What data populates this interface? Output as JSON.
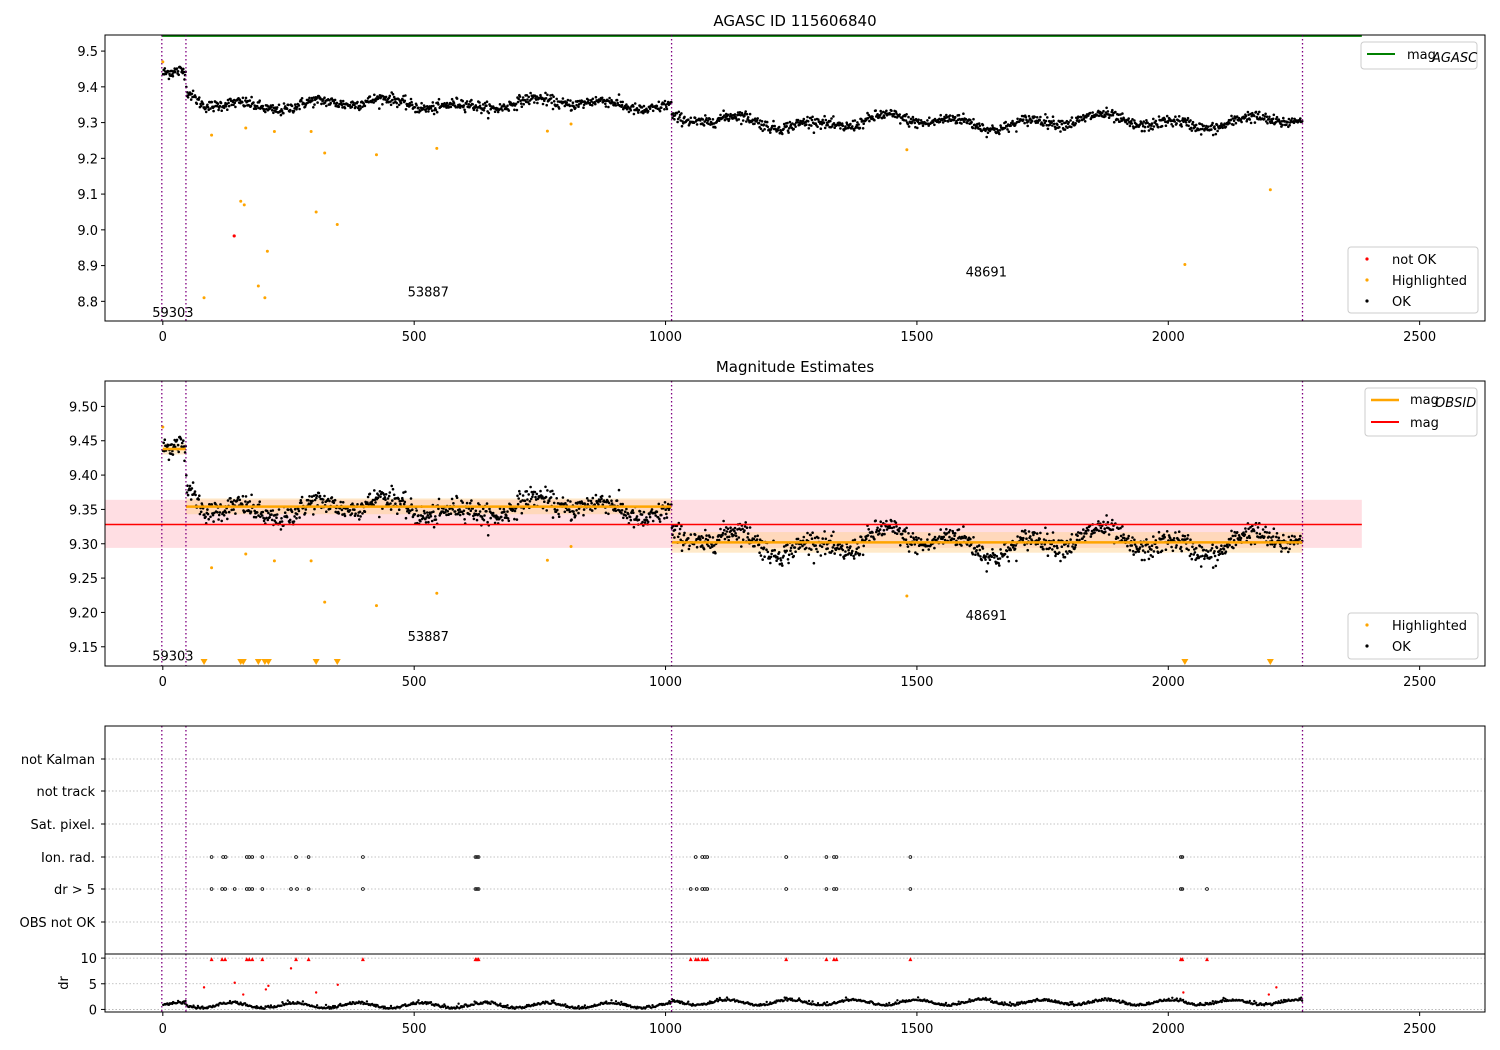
{
  "colors": {
    "ok": "#000000",
    "highlighted": "#ffa500",
    "not_ok": "#ff0000",
    "mag_agasc": "#008000",
    "mag_obsid": "#ffa500",
    "mag": "#ff0000",
    "obs_line": "#800080",
    "obs_line_alt": "#0000ff"
  },
  "chart_data": [
    {
      "type": "scatter",
      "title": "AGASC ID 115606840",
      "xlim": [
        -115,
        2630
      ],
      "ylim": [
        8.745,
        9.545
      ],
      "x_ticks": [
        0,
        500,
        1000,
        1500,
        2000,
        2500
      ],
      "x_tick_labels": [
        "0",
        "500",
        "1000",
        "1500",
        "2000",
        "2500"
      ],
      "y_ticks": [
        8.8,
        8.9,
        9.0,
        9.1,
        9.2,
        9.3,
        9.4,
        9.5
      ],
      "y_tick_labels": [
        "8.8",
        "8.9",
        "9.0",
        "9.1",
        "9.2",
        "9.3",
        "9.4",
        "9.5"
      ],
      "obs_boundaries": [
        -2,
        46,
        1012,
        2267
      ],
      "obs_labels": [
        {
          "text": "59303",
          "x": 20,
          "y": 8.77
        },
        {
          "text": "53887",
          "x": 528,
          "y": 8.827
        },
        {
          "text": "48691",
          "x": 1638,
          "y": 8.883
        }
      ],
      "mag_agasc": {
        "value": 9.542,
        "x_range": [
          -2,
          2385
        ]
      },
      "segments": [
        {
          "x_range": [
            0,
            46
          ],
          "level": 9.438,
          "amp": 0.006,
          "noise": 0.009,
          "count": 40
        },
        {
          "x_range": [
            46,
            1012
          ],
          "level": 9.352,
          "amp": 0.014,
          "noise": 0.008,
          "count": 780
        },
        {
          "x_range": [
            1012,
            2267
          ],
          "level": 9.302,
          "amp": 0.017,
          "noise": 0.008,
          "count": 1000
        }
      ],
      "highlighted": [
        [
          0,
          9.47
        ],
        [
          82,
          8.81
        ],
        [
          97,
          9.265
        ],
        [
          155,
          9.08
        ],
        [
          162,
          9.07
        ],
        [
          165,
          9.285
        ],
        [
          190,
          8.843
        ],
        [
          203,
          8.81
        ],
        [
          208,
          8.94
        ],
        [
          222,
          9.275
        ],
        [
          295,
          9.275
        ],
        [
          305,
          9.05
        ],
        [
          322,
          9.215
        ],
        [
          347,
          9.015
        ],
        [
          425,
          9.21
        ],
        [
          545,
          9.228
        ],
        [
          765,
          9.276
        ],
        [
          812,
          9.296
        ],
        [
          1480,
          9.224
        ],
        [
          2033,
          8.903
        ],
        [
          2203,
          9.112
        ]
      ],
      "not_ok": [
        [
          142,
          8.983
        ]
      ],
      "legend": {
        "upper": [
          "mag_AGASC"
        ],
        "lower": [
          "not OK",
          "Highlighted",
          "OK"
        ]
      }
    },
    {
      "type": "scatter",
      "title": "Magnitude Estimates",
      "xlim": [
        -115,
        2630
      ],
      "ylim": [
        9.122,
        9.537
      ],
      "x_ticks": [
        0,
        500,
        1000,
        1500,
        2000,
        2500
      ],
      "x_tick_labels": [
        "0",
        "500",
        "1000",
        "1500",
        "2000",
        "2500"
      ],
      "y_ticks": [
        9.15,
        9.2,
        9.25,
        9.3,
        9.35,
        9.4,
        9.45,
        9.5
      ],
      "y_tick_labels": [
        "9.15",
        "9.20",
        "9.25",
        "9.30",
        "9.35",
        "9.40",
        "9.45",
        "9.50"
      ],
      "obs_labels": [
        {
          "text": "59303",
          "x": 20,
          "y": 9.137
        },
        {
          "text": "53887",
          "x": 528,
          "y": 9.166
        },
        {
          "text": "48691",
          "x": 1638,
          "y": 9.196
        }
      ],
      "mag": {
        "value": 9.328,
        "band": [
          9.294,
          9.364
        ],
        "x_range": [
          -115,
          2385
        ]
      },
      "mag_obsid": [
        {
          "x_range": [
            0,
            46
          ],
          "value": 9.438,
          "band": [
            9.43,
            9.446
          ]
        },
        {
          "x_range": [
            46,
            1012
          ],
          "value": 9.354,
          "band": [
            9.343,
            9.366
          ]
        },
        {
          "x_range": [
            1012,
            2267
          ],
          "value": 9.302,
          "band": [
            9.287,
            9.317
          ]
        }
      ],
      "triangles_x": [
        82,
        155,
        160,
        190,
        203,
        210,
        305,
        347,
        2033,
        2203
      ],
      "legend": {
        "upper": [
          "mag_OBSID",
          "mag"
        ],
        "lower": [
          "Highlighted",
          "OK"
        ]
      }
    },
    {
      "type": "scatter",
      "title": "",
      "xlim": [
        -115,
        2630
      ],
      "categories": [
        "not Kalman",
        "not track",
        "Sat. pixel.",
        "Ion. rad.",
        "dr > 5",
        "OBS not OK"
      ],
      "flags": {
        "Ion. rad.": [
          97,
          120,
          125,
          167,
          172,
          178,
          198,
          265,
          290,
          398,
          622,
          625,
          628,
          1060,
          1073,
          1078,
          1083,
          1240,
          1320,
          1335,
          1340,
          1487,
          2025,
          2028
        ],
        "dr > 5": [
          97,
          118,
          124,
          143,
          167,
          172,
          178,
          198,
          255,
          267,
          290,
          398,
          622,
          625,
          628,
          1050,
          1062,
          1073,
          1078,
          1083,
          1240,
          1320,
          1335,
          1340,
          1487,
          2025,
          2028,
          2077
        ]
      },
      "dr": {
        "ylabel": "dr",
        "y_ticks": [
          0,
          5,
          10
        ],
        "y_tick_labels": [
          "0",
          "5",
          "10"
        ],
        "ylim": [
          -0.5,
          10.8
        ],
        "red_top": [
          97,
          118,
          124,
          167,
          172,
          178,
          198,
          265,
          290,
          398,
          622,
          625,
          628,
          1050,
          1060,
          1065,
          1073,
          1078,
          1083,
          1240,
          1320,
          1335,
          1340,
          1487,
          2025,
          2028,
          2077
        ],
        "red_scatter": [
          [
            82,
            4.3
          ],
          [
            143,
            5.2
          ],
          [
            160,
            2.9
          ],
          [
            205,
            3.9
          ],
          [
            210,
            4.6
          ],
          [
            255,
            8.0
          ],
          [
            305,
            3.3
          ],
          [
            348,
            4.8
          ],
          [
            2030,
            3.3
          ],
          [
            2200,
            2.9
          ],
          [
            2215,
            4.3
          ]
        ]
      }
    }
  ]
}
